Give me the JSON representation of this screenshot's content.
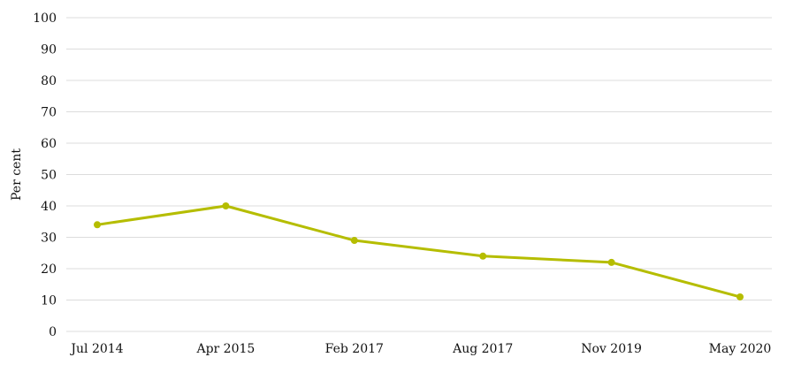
{
  "chart_data": {
    "type": "line",
    "title": "",
    "xlabel": "",
    "ylabel": "Per cent",
    "categories": [
      "Jul 2014",
      "Apr 2015",
      "Feb 2017",
      "Aug 2017",
      "Nov 2019",
      "May 2020"
    ],
    "series": [
      {
        "values": [
          34,
          40,
          29,
          24,
          22,
          11
        ],
        "color": "#b5bd00"
      }
    ],
    "ylim": [
      0,
      100
    ],
    "yticks": [
      0,
      10,
      20,
      30,
      40,
      50,
      60,
      70,
      80,
      90,
      100
    ],
    "grid": true,
    "legend": "none"
  }
}
